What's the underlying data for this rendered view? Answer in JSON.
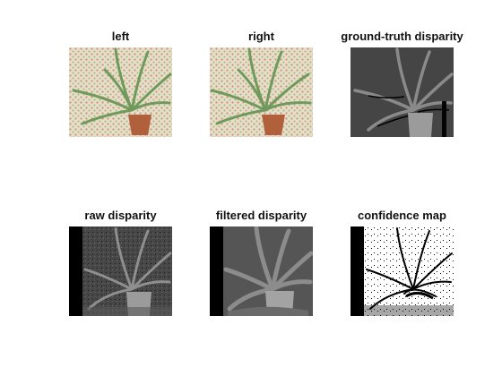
{
  "panels": [
    {
      "id": "left",
      "title": "left"
    },
    {
      "id": "right",
      "title": "right"
    },
    {
      "id": "ground_truth",
      "title": "ground-truth disparity"
    },
    {
      "id": "raw",
      "title": "raw disparity"
    },
    {
      "id": "filtered",
      "title": "filtered disparity"
    },
    {
      "id": "confidence",
      "title": "confidence map"
    }
  ],
  "colors": {
    "background": "#ffffff",
    "wallpaper": "#e6dfc6",
    "leaf": "#6f9a5c",
    "pot": "#b0603a",
    "disparity_bg": "#4b4b4b",
    "disparity_plant": "#9a9a9a",
    "occlusion": "#000000"
  }
}
